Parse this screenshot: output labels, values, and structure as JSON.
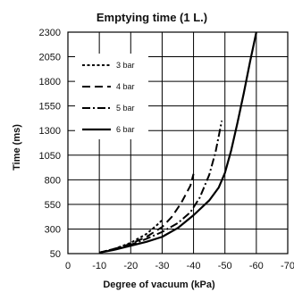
{
  "chart_data": {
    "type": "line",
    "title": "Emptying time  (1 L.)",
    "xlabel": "Degree of vacuum  (kPa)",
    "ylabel": "Time (ms)",
    "xlim": [
      0,
      -70
    ],
    "ylim": [
      50,
      2300
    ],
    "x_ticks": [
      0,
      -10,
      -20,
      -30,
      -40,
      -50,
      -60,
      -70
    ],
    "y_ticks": [
      50,
      300,
      550,
      800,
      1050,
      1300,
      1550,
      1800,
      2050,
      2300
    ],
    "grid": true,
    "legend_position": "top-left",
    "series": [
      {
        "name": "3 bar",
        "dash": "3,2.5",
        "stroke_width": 2,
        "points": [
          [
            -10,
            60
          ],
          [
            -15,
            100
          ],
          [
            -20,
            160
          ],
          [
            -25,
            250
          ],
          [
            -28,
            330
          ],
          [
            -30,
            390
          ]
        ]
      },
      {
        "name": "4 bar",
        "dash": "9,5",
        "stroke_width": 2,
        "points": [
          [
            -10,
            60
          ],
          [
            -15,
            100
          ],
          [
            -20,
            150
          ],
          [
            -25,
            220
          ],
          [
            -30,
            320
          ],
          [
            -33,
            420
          ],
          [
            -36,
            560
          ],
          [
            -39,
            740
          ],
          [
            -40,
            860
          ]
        ]
      },
      {
        "name": "5 bar",
        "dash": "9,3,2,3",
        "stroke_width": 2,
        "points": [
          [
            -10,
            60
          ],
          [
            -15,
            95
          ],
          [
            -20,
            140
          ],
          [
            -25,
            200
          ],
          [
            -30,
            270
          ],
          [
            -35,
            360
          ],
          [
            -39,
            470
          ],
          [
            -42,
            620
          ],
          [
            -45,
            850
          ],
          [
            -47,
            1080
          ],
          [
            -49,
            1400
          ]
        ]
      },
      {
        "name": "6 bar",
        "dash": "",
        "stroke_width": 2.2,
        "points": [
          [
            -10,
            60
          ],
          [
            -15,
            90
          ],
          [
            -20,
            130
          ],
          [
            -25,
            170
          ],
          [
            -30,
            220
          ],
          [
            -35,
            310
          ],
          [
            -40,
            440
          ],
          [
            -45,
            590
          ],
          [
            -48,
            720
          ],
          [
            -50,
            870
          ],
          [
            -52,
            1100
          ],
          [
            -54,
            1380
          ],
          [
            -56,
            1680
          ],
          [
            -58,
            2000
          ],
          [
            -60,
            2300
          ]
        ]
      }
    ]
  }
}
